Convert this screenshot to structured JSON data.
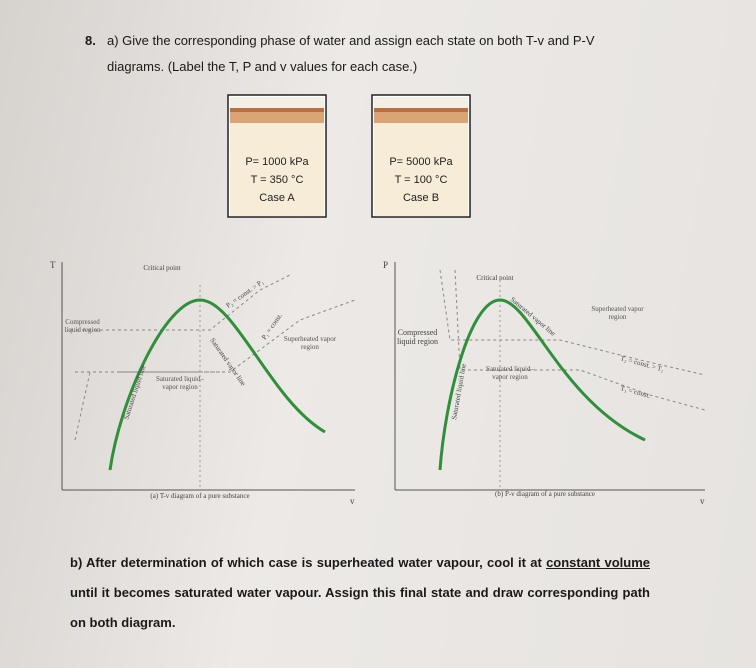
{
  "question": {
    "number": "8.",
    "part_a": "a) Give the corresponding phase of water and assign each state on both T-v and P-V diagrams. (Label the T, P and v values for each case.)",
    "cases": [
      {
        "pressure": "P= 1000 kPa",
        "temperature": "T = 350 °C",
        "label": "Case A"
      },
      {
        "pressure": "P= 5000 kPa",
        "temperature": "T = 100 °C",
        "label": "Case B"
      }
    ],
    "diagrams": [
      {
        "y_axis": "T",
        "x_axis": "v",
        "critical_point": "Critical point",
        "compressed": "Compressed liquid region",
        "sat_liquid": "Saturated liquid line",
        "sat_vapor": "Saturated vapor line",
        "superheated": "Superheated vapor region",
        "mixture": "Saturated liquid–vapor region",
        "upper_line": "P₂ = const. > P₁",
        "lower_line": "P₁ = const.",
        "caption": "(a) T-v diagram of a pure substance"
      },
      {
        "y_axis": "P",
        "x_axis": "v",
        "critical_point": "Critical point",
        "compressed": "Compressed liquid region",
        "sat_liquid": "Saturated liquid line",
        "sat_vapor": "Saturated vapor line",
        "superheated": "Superheated vapor region",
        "mixture": "Saturated liquid–vapor region",
        "upper_line": "T₂ = const. > T₁",
        "lower_line": "T₁ = const.",
        "caption": "(b) P-v diagram of a pure substance"
      }
    ],
    "part_b": {
      "start": "b) After determination of which case is superheated water vapour, cool it at ",
      "emphasis_1": "constant volume",
      "middle": " until it becomes saturated water vapour. Assign this final state and draw corresponding path on ",
      "emphasis_2": "both diagram",
      "end": "."
    }
  }
}
